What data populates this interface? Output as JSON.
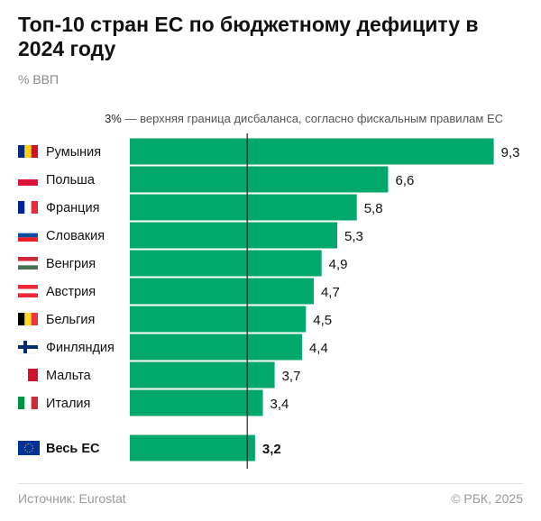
{
  "title": "Топ-10 стран ЕС по бюджетному дефициту в 2024 году",
  "subtitle": "% ВВП",
  "note_value": "3%",
  "note_text": " — верхняя граница дисбаланса, согласно фискальным правилам ЕС",
  "source": "Источник: Eurostat",
  "copyright": "© РБК, 2025",
  "colors": {
    "bar": "#00a86b",
    "threshold_line": "#333333"
  },
  "chart_data": {
    "type": "bar",
    "orientation": "horizontal",
    "categories": [
      "Румыния",
      "Польша",
      "Франция",
      "Словакия",
      "Венгрия",
      "Австрия",
      "Бельгия",
      "Финляндия",
      "Мальта",
      "Италия",
      "Весь ЕС"
    ],
    "value_labels": [
      "9,3",
      "6,6",
      "5,8",
      "5,3",
      "4,9",
      "4,7",
      "4,5",
      "4,4",
      "3,7",
      "3,4",
      "3,2"
    ],
    "values": [
      9.3,
      6.6,
      5.8,
      5.3,
      4.9,
      4.7,
      4.5,
      4.4,
      3.7,
      3.4,
      3.2
    ],
    "highlight_category": "Весь ЕС",
    "reference_line": 3,
    "unit": "% ВВП",
    "flags": [
      {
        "dir": "v",
        "colors": [
          "#002b7f",
          "#fcd116",
          "#ce1126"
        ]
      },
      {
        "dir": "h",
        "colors": [
          "#ffffff",
          "#dc143c"
        ]
      },
      {
        "dir": "v",
        "colors": [
          "#002395",
          "#ffffff",
          "#ed2939"
        ]
      },
      {
        "dir": "h",
        "colors": [
          "#ffffff",
          "#0b4ea2",
          "#ee1c25"
        ]
      },
      {
        "dir": "h",
        "colors": [
          "#ce2939",
          "#ffffff",
          "#477050"
        ]
      },
      {
        "dir": "h",
        "colors": [
          "#ed2939",
          "#ffffff",
          "#ed2939"
        ]
      },
      {
        "dir": "v",
        "colors": [
          "#000000",
          "#fdda24",
          "#ef3340"
        ]
      },
      {
        "dir": "cross",
        "colors": [
          "#ffffff",
          "#002f6c"
        ]
      },
      {
        "dir": "v",
        "colors": [
          "#ffffff",
          "#cf142b"
        ]
      },
      {
        "dir": "v",
        "colors": [
          "#009246",
          "#ffffff",
          "#ce2b37"
        ]
      },
      {
        "dir": "eu",
        "colors": [
          "#003399",
          "#ffcc00"
        ]
      }
    ]
  }
}
